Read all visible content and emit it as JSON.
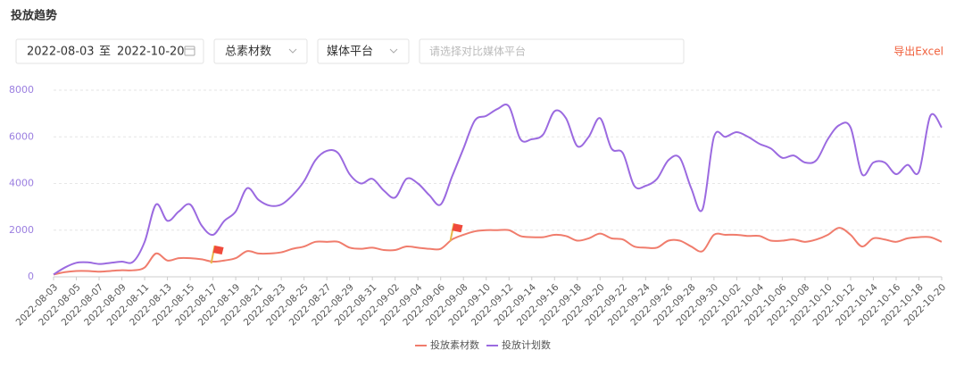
{
  "controls": {
    "title": "投放趋势",
    "start_date": "2022-08-03",
    "to": "至",
    "end_date": "2022-10-20",
    "metric": "总素材数",
    "platform": "媒体平台",
    "compare_placeholder": "请选择对比媒体平台",
    "export": "导出Excel"
  },
  "chart_data": {
    "type": "line",
    "categories": [
      "2022-08-03",
      null,
      "2022-08-05",
      null,
      "2022-08-07",
      null,
      "2022-08-09",
      null,
      "2022-08-11",
      null,
      "2022-08-13",
      null,
      "2022-08-15",
      null,
      "2022-08-17",
      null,
      "2022-08-19",
      null,
      "2022-08-21",
      null,
      "2022-08-23",
      null,
      "2022-08-25",
      null,
      "2022-08-27",
      null,
      "2022-08-29",
      null,
      "2022-08-31",
      null,
      "2022-09-02",
      null,
      "2022-09-04",
      null,
      "2022-09-06",
      null,
      "2022-09-08",
      null,
      "2022-09-10",
      null,
      "2022-09-12",
      null,
      "2022-09-14",
      null,
      "2022-09-16",
      null,
      "2022-09-18",
      null,
      "2022-09-20",
      null,
      "2022-09-22",
      null,
      "2022-09-24",
      null,
      "2022-09-26",
      null,
      "2022-09-28",
      null,
      "2022-09-30",
      null,
      "2022-10-02",
      null,
      "2022-10-04",
      null,
      "2022-10-06",
      null,
      "2022-10-08",
      null,
      "2022-10-10",
      null,
      "2022-10-12",
      null,
      "2022-10-14",
      null,
      "2022-10-16",
      null,
      "2022-10-18",
      null,
      "2022-10-20"
    ],
    "series": [
      {
        "name": "投放素材数",
        "color": "#f07c6c",
        "values": [
          100,
          200,
          250,
          250,
          220,
          250,
          280,
          280,
          400,
          1000,
          700,
          800,
          800,
          750,
          650,
          700,
          800,
          1100,
          1000,
          1000,
          1050,
          1200,
          1300,
          1500,
          1500,
          1500,
          1250,
          1200,
          1250,
          1150,
          1150,
          1300,
          1250,
          1200,
          1200,
          1600,
          1800,
          1950,
          2000,
          2000,
          2000,
          1750,
          1700,
          1700,
          1800,
          1750,
          1550,
          1650,
          1850,
          1650,
          1600,
          1300,
          1250,
          1250,
          1550,
          1550,
          1300,
          1100,
          1800,
          1800,
          1800,
          1750,
          1750,
          1550,
          1550,
          1600,
          1500,
          1600,
          1800,
          2100,
          1800,
          1300,
          1650,
          1600,
          1500,
          1650,
          1700,
          1700,
          1500
        ]
      },
      {
        "name": "投放计划数",
        "color": "#9b6ae0",
        "values": [
          100,
          400,
          600,
          620,
          550,
          600,
          650,
          650,
          1500,
          3100,
          2400,
          2800,
          3100,
          2200,
          1800,
          2400,
          2800,
          3800,
          3300,
          3050,
          3100,
          3500,
          4100,
          5000,
          5400,
          5300,
          4400,
          4000,
          4200,
          3700,
          3400,
          4200,
          4000,
          3500,
          3100,
          4300,
          5500,
          6700,
          6900,
          7200,
          7300,
          5900,
          5900,
          6100,
          7100,
          6800,
          5600,
          6000,
          6800,
          5500,
          5300,
          3900,
          3900,
          4200,
          5000,
          5100,
          3800,
          2900,
          6000,
          6000,
          6200,
          6000,
          5700,
          5500,
          5100,
          5200,
          4900,
          5000,
          5900,
          6500,
          6400,
          4400,
          4900,
          4900,
          4400,
          4800,
          4500,
          6900,
          6400
        ]
      }
    ],
    "ylim": [
      0,
      8000
    ],
    "yticks": [
      0,
      2000,
      4000,
      6000,
      8000
    ],
    "grid": true,
    "legend": "bottom"
  }
}
